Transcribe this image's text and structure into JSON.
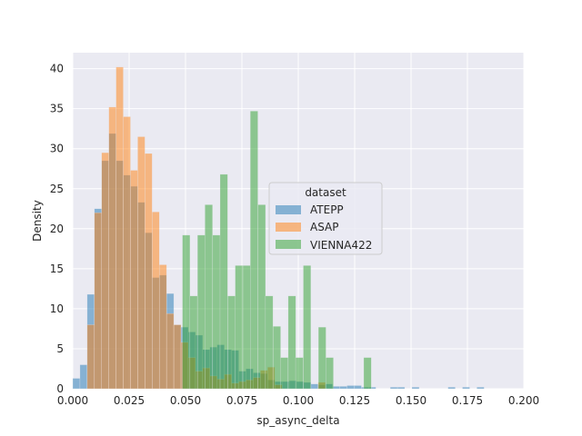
{
  "chart_data": {
    "type": "bar",
    "title": "",
    "xlabel": "sp_async_delta",
    "ylabel": "Density",
    "xlim": [
      0.0,
      0.2
    ],
    "ylim": [
      0,
      42
    ],
    "xticks": [
      0.0,
      0.025,
      0.05,
      0.075,
      0.1,
      0.125,
      0.15,
      0.175,
      0.2
    ],
    "xtick_labels": [
      "0.000",
      "0.025",
      "0.050",
      "0.075",
      "0.100",
      "0.125",
      "0.150",
      "0.175",
      "0.200"
    ],
    "yticks": [
      0,
      5,
      10,
      15,
      20,
      25,
      30,
      35,
      40
    ],
    "ytick_labels": [
      "0",
      "5",
      "10",
      "15",
      "20",
      "25",
      "30",
      "35",
      "40"
    ],
    "grid": true,
    "legend": {
      "title": "dataset",
      "placement": "center-right"
    },
    "series": [
      {
        "name": "ATEPP",
        "color": "#1f77b4",
        "bin_width": 0.0032,
        "x": [
          0.0016,
          0.0048,
          0.008,
          0.0112,
          0.0144,
          0.0176,
          0.0208,
          0.024,
          0.0272,
          0.0304,
          0.0336,
          0.0368,
          0.04,
          0.0432,
          0.0464,
          0.0496,
          0.0528,
          0.056,
          0.0592,
          0.0624,
          0.0656,
          0.0688,
          0.072,
          0.0752,
          0.0784,
          0.0816,
          0.0848,
          0.088,
          0.0912,
          0.0944,
          0.0976,
          0.1008,
          0.104,
          0.1072,
          0.1104,
          0.1136,
          0.1168,
          0.12,
          0.1232,
          0.1264,
          0.1296,
          0.1328,
          0.136,
          0.1392,
          0.1424,
          0.1456,
          0.1488,
          0.152,
          0.1552,
          0.1584,
          0.1616,
          0.1648,
          0.168,
          0.1712,
          0.1744,
          0.1776,
          0.1808
        ],
        "values": [
          1.3,
          3.0,
          11.8,
          22.5,
          28.5,
          31.9,
          28.5,
          26.7,
          25.3,
          23.3,
          19.5,
          13.9,
          14.2,
          11.9,
          8.0,
          7.7,
          7.1,
          6.7,
          4.9,
          5.2,
          5.5,
          4.9,
          4.8,
          2.2,
          2.5,
          2.0,
          1.9,
          1.1,
          0.9,
          0.9,
          1.0,
          0.9,
          0.8,
          0.6,
          0.5,
          0.6,
          0.3,
          0.3,
          0.4,
          0.4,
          0.2,
          0.2,
          0.0,
          0.0,
          0.2,
          0.2,
          0.0,
          0.2,
          0.0,
          0.0,
          0.0,
          0.0,
          0.2,
          0.0,
          0.2,
          0.0,
          0.2
        ]
      },
      {
        "name": "ASAP",
        "color": "#ff7f0e",
        "bin_width": 0.0032,
        "x": [
          0.0016,
          0.0048,
          0.008,
          0.0112,
          0.0144,
          0.0176,
          0.0208,
          0.024,
          0.0272,
          0.0304,
          0.0336,
          0.0368,
          0.04,
          0.0432,
          0.0464,
          0.0496,
          0.0528,
          0.056,
          0.0592,
          0.0624,
          0.0656,
          0.0688,
          0.072,
          0.0752,
          0.0784,
          0.0816,
          0.0848,
          0.088,
          0.0912,
          0.0944,
          0.0976,
          0.1008,
          0.104,
          0.1072,
          0.1104
        ],
        "values": [
          0.0,
          0.0,
          8.0,
          22.0,
          29.5,
          35.2,
          40.2,
          34.0,
          27.3,
          31.5,
          29.4,
          22.1,
          15.5,
          9.4,
          8.0,
          5.8,
          3.9,
          2.2,
          2.6,
          1.6,
          1.2,
          1.8,
          0.7,
          0.9,
          1.1,
          1.4,
          2.3,
          2.7,
          0.5,
          0.0,
          0.0,
          0.0,
          0.0,
          0.0,
          0.8
        ]
      },
      {
        "name": "VIENNA422",
        "color": "#2ca02c",
        "bin_width": 0.00335,
        "x": [
          0.0503,
          0.0536,
          0.057,
          0.0603,
          0.0637,
          0.067,
          0.0704,
          0.0737,
          0.0771,
          0.0804,
          0.0838,
          0.0871,
          0.0905,
          0.0938,
          0.0972,
          0.1005,
          0.1039,
          0.1072,
          0.1106,
          0.1139,
          0.1173,
          0.1206,
          0.124,
          0.1273,
          0.1307
        ],
        "values": [
          19.2,
          11.6,
          19.2,
          23.0,
          19.2,
          26.8,
          11.6,
          15.4,
          15.4,
          34.7,
          23.0,
          11.6,
          7.8,
          3.9,
          11.6,
          3.9,
          15.4,
          0.0,
          7.7,
          3.9,
          0.0,
          0.0,
          0.0,
          0.0,
          3.9
        ]
      }
    ]
  }
}
